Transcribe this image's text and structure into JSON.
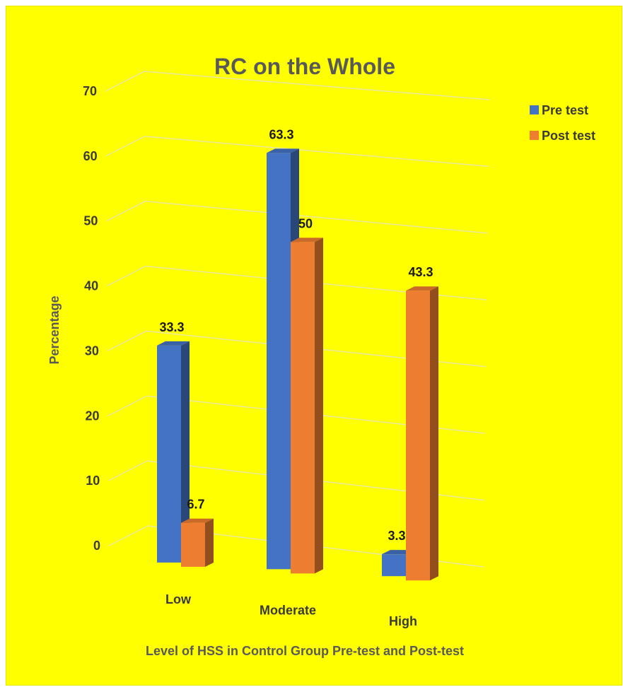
{
  "chart_data": {
    "type": "bar",
    "title": "RC on the Whole",
    "xlabel": "Level of HSS in Control Group Pre-test and Post-test",
    "ylabel": "Percentage",
    "categories": [
      "Low",
      "Moderate",
      "High"
    ],
    "series": [
      {
        "name": "Pre test",
        "values": [
          33.3,
          63.3,
          3.3
        ],
        "labels": [
          "33.3",
          "63.3",
          "3.3"
        ]
      },
      {
        "name": "Post test",
        "values": [
          6.7,
          50,
          43.3
        ],
        "labels": [
          "6.7",
          "50",
          "43.3"
        ]
      }
    ],
    "yticks": [
      "0",
      "10",
      "20",
      "30",
      "40",
      "50",
      "60",
      "70"
    ],
    "ylim": [
      0,
      70
    ],
    "grid": true,
    "legend": "top-right",
    "style": "3d-perspective",
    "colors": {
      "background": "#FFFF00",
      "pre": "#4472C4",
      "post": "#ED7D31",
      "grid": "#E8E8A0",
      "title": "#595959"
    }
  }
}
